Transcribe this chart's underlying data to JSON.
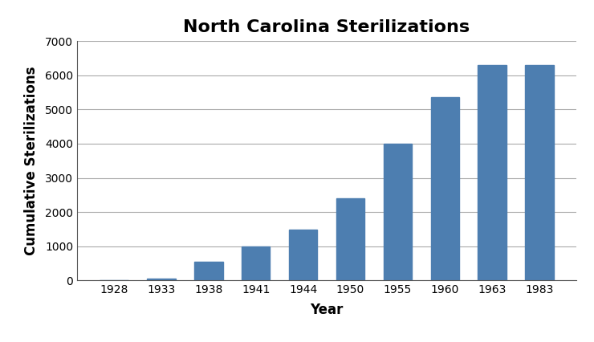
{
  "title": "North Carolina Sterilizations",
  "xlabel": "Year",
  "ylabel": "Cumulative Sterilizations",
  "categories": [
    "1928",
    "1933",
    "1938",
    "1941",
    "1944",
    "1950",
    "1955",
    "1960",
    "1963",
    "1983"
  ],
  "values": [
    0,
    50,
    540,
    1000,
    1480,
    2400,
    4000,
    5350,
    6300,
    6300
  ],
  "bar_color": "#4d7eb0",
  "ylim": [
    0,
    7000
  ],
  "yticks": [
    0,
    1000,
    2000,
    3000,
    4000,
    5000,
    6000,
    7000
  ],
  "background_color": "#ffffff",
  "title_fontsize": 16,
  "axis_label_fontsize": 12,
  "tick_fontsize": 10
}
